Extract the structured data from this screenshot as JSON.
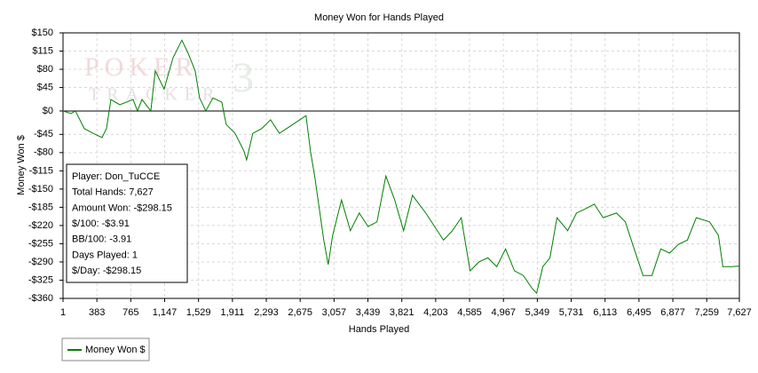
{
  "chart_data": {
    "type": "line",
    "title": "Money Won for Hands Played",
    "xlabel": "Hands Played",
    "ylabel": "Money Won $",
    "watermark": [
      "POKER",
      "TRACKER",
      "3"
    ],
    "info_box": [
      "Player: Don_TuCCE",
      "Total Hands: 7,627",
      "Amount Won: -$298.15",
      "$/100: -$3.91",
      "BB/100: -3.91",
      "Days Played: 1",
      "$/Day: -$298.15"
    ],
    "grid": true,
    "legend": "bottom-left",
    "xlim": [
      1,
      7627
    ],
    "ylim": [
      -360,
      150
    ],
    "xticks": [
      1,
      383,
      765,
      {
        "value": 1147,
        "label": "1,147"
      },
      {
        "value": 1529,
        "label": "1,529"
      },
      {
        "value": 1911,
        "label": "1,911"
      },
      {
        "value": 2293,
        "label": "2,293"
      },
      {
        "value": 2675,
        "label": "2,675"
      },
      {
        "value": 3057,
        "label": "3,057"
      },
      {
        "value": 3439,
        "label": "3,439"
      },
      {
        "value": 3821,
        "label": "3,821"
      },
      {
        "value": 4203,
        "label": "4,203"
      },
      {
        "value": 4585,
        "label": "4,585"
      },
      {
        "value": 4967,
        "label": "4,967"
      },
      {
        "value": 5349,
        "label": "5,349"
      },
      {
        "value": 5731,
        "label": "5,731"
      },
      {
        "value": 6113,
        "label": "6,113"
      },
      {
        "value": 6495,
        "label": "6,495"
      },
      {
        "value": 6877,
        "label": "6,877"
      },
      {
        "value": 7259,
        "label": "7,259"
      },
      {
        "value": 7627,
        "label": "7,627"
      }
    ],
    "yticks": [
      {
        "value": 150,
        "label": "$150"
      },
      {
        "value": 115,
        "label": "$115"
      },
      {
        "value": 80,
        "label": "$80"
      },
      {
        "value": 45,
        "label": "$45"
      },
      {
        "value": 0,
        "label": "$0"
      },
      {
        "value": -45,
        "label": "-$45"
      },
      {
        "value": -80,
        "label": "-$80"
      },
      {
        "value": -115,
        "label": "-$115"
      },
      {
        "value": -150,
        "label": "-$150"
      },
      {
        "value": -185,
        "label": "-$185"
      },
      {
        "value": -220,
        "label": "-$220"
      },
      {
        "value": -255,
        "label": "-$255"
      },
      {
        "value": -290,
        "label": "-$290"
      },
      {
        "value": -325,
        "label": "-$325"
      },
      {
        "value": -360,
        "label": "-$360"
      }
    ],
    "x": [
      1,
      91,
      141,
      241,
      341,
      441,
      491,
      541,
      641,
      791,
      841,
      891,
      991,
      1041,
      1141,
      1241,
      1341,
      1411,
      1491,
      1541,
      1611,
      1691,
      1791,
      1841,
      1941,
      2041,
      2071,
      2141,
      2241,
      2341,
      2441,
      2591,
      2741,
      2791,
      2841,
      2941,
      2991,
      3041,
      3141,
      3241,
      3341,
      3441,
      3541,
      3641,
      3741,
      3841,
      3941,
      4091,
      4191,
      4291,
      4391,
      4491,
      4591,
      4691,
      4791,
      4891,
      4991,
      5091,
      5191,
      5291,
      5341,
      5411,
      5491,
      5571,
      5691,
      5791,
      5891,
      5991,
      6091,
      6241,
      6341,
      6441,
      6541,
      6641,
      6741,
      6841,
      6941,
      7041,
      7141,
      7291,
      7391,
      7441,
      7541,
      7627
    ],
    "series": [
      {
        "name": "Money Won $",
        "color": "#008000",
        "values": [
          0,
          -5,
          0,
          -34,
          -43,
          -51,
          -34,
          22,
          12,
          22,
          0,
          22,
          0,
          77,
          42,
          102,
          136,
          111,
          77,
          25,
          0,
          25,
          17,
          -26,
          -43,
          -77,
          -94,
          -43,
          -34,
          -17,
          -43,
          -26,
          -9,
          -77,
          -128,
          -248,
          -295,
          -239,
          -171,
          -230,
          -196,
          -222,
          -213,
          -125,
          -171,
          -230,
          -162,
          -196,
          -222,
          -248,
          -230,
          -205,
          -307,
          -290,
          -282,
          -299,
          -265,
          -307,
          -316,
          -341,
          -350,
          -299,
          -282,
          -205,
          -230,
          -196,
          -188,
          -179,
          -205,
          -196,
          -213,
          -265,
          -316,
          -316,
          -265,
          -273,
          -256,
          -248,
          -205,
          -213,
          -239,
          -299,
          -299,
          -298
        ]
      }
    ]
  }
}
